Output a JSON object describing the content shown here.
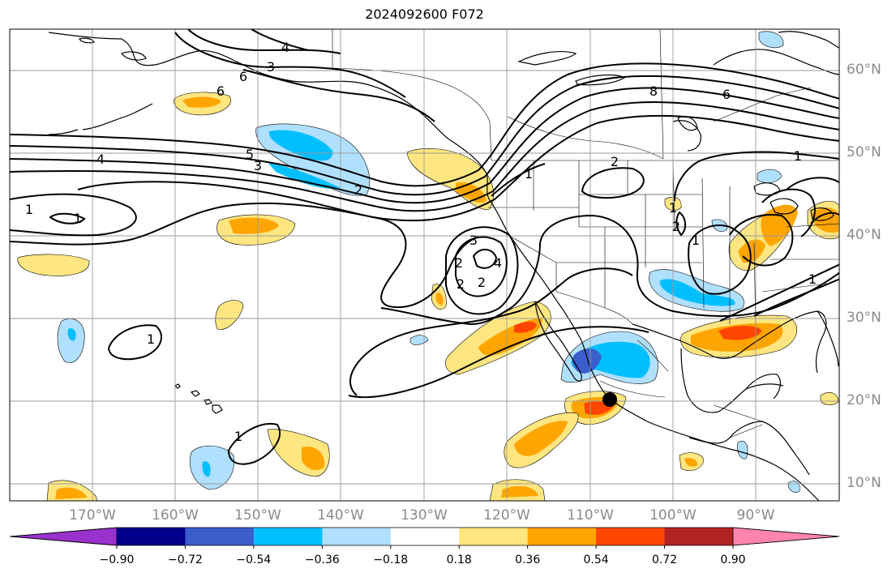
{
  "title": "2024092600 F072",
  "lon_labels": [
    "170°W",
    "160°W",
    "150°W",
    "140°W",
    "130°W",
    "120°W",
    "110°W",
    "100°W",
    "90°W"
  ],
  "lat_labels": [
    "60°N",
    "50°N",
    "40°N",
    "30°N",
    "20°N",
    "10°N"
  ],
  "contour_labels": [
    "4",
    "6",
    "3",
    "6",
    "8",
    "6",
    "1",
    "5",
    "4",
    "3",
    "2",
    "2",
    "1",
    "2",
    "4",
    "2",
    "2",
    "1",
    "1",
    "1",
    "3",
    "2",
    "1",
    "1",
    "1",
    "1"
  ],
  "colorbar": {
    "tick_labels": [
      "−0.90",
      "−0.72",
      "−0.54",
      "−0.36",
      "−0.18",
      "0.18",
      "0.36",
      "0.54",
      "0.72",
      "0.90"
    ],
    "colors": [
      "#9932cc",
      "#00008b",
      "#3a5fcd",
      "#00bfff",
      "#b0e0ff",
      "#ffffff",
      "#ffe680",
      "#ffa500",
      "#ff4500",
      "#b22222",
      "#ff85b0"
    ]
  },
  "marker": "storm-center-dot"
}
